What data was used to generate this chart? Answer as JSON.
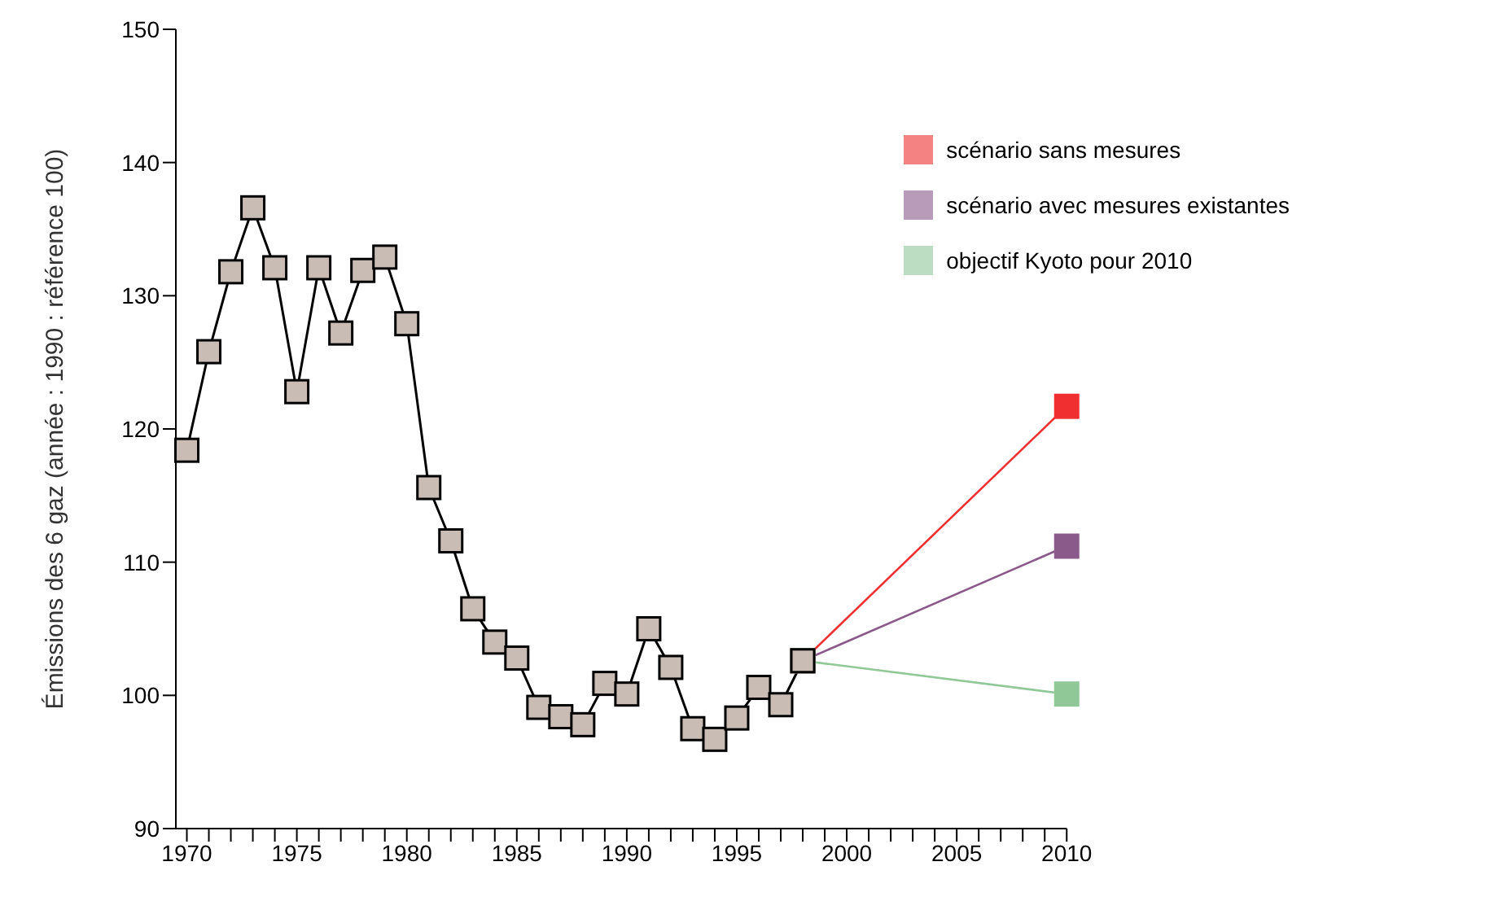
{
  "chart_data": {
    "type": "line",
    "ylabel": "Émissions des 6 gaz (année : 1990 : référence 100)",
    "xlim": [
      1969.5,
      2010
    ],
    "ylim": [
      90,
      150
    ],
    "yticks": [
      90,
      100,
      110,
      120,
      130,
      140,
      150
    ],
    "xticks": [
      1970,
      {
        "value": 1971,
        "label": null
      },
      {
        "value": 1972,
        "label": null
      },
      {
        "value": 1973,
        "label": null
      },
      {
        "value": 1974,
        "label": null
      },
      1975,
      {
        "value": 1976,
        "label": null
      },
      {
        "value": 1977,
        "label": null
      },
      {
        "value": 1978,
        "label": null
      },
      {
        "value": 1979,
        "label": null
      },
      1980,
      {
        "value": 1981,
        "label": null
      },
      {
        "value": 1982,
        "label": null
      },
      {
        "value": 1983,
        "label": null
      },
      {
        "value": 1984,
        "label": null
      },
      1985,
      {
        "value": 1986,
        "label": null
      },
      {
        "value": 1987,
        "label": null
      },
      {
        "value": 1988,
        "label": null
      },
      {
        "value": 1989,
        "label": null
      },
      1990,
      {
        "value": 1991,
        "label": null
      },
      {
        "value": 1992,
        "label": null
      },
      {
        "value": 1993,
        "label": null
      },
      {
        "value": 1994,
        "label": null
      },
      1995,
      {
        "value": 1996,
        "label": null
      },
      {
        "value": 1997,
        "label": null
      },
      {
        "value": 1998,
        "label": null
      },
      {
        "value": 1999,
        "label": null
      },
      2000,
      {
        "value": 2001,
        "label": null
      },
      {
        "value": 2002,
        "label": null
      },
      {
        "value": 2003,
        "label": null
      },
      {
        "value": 2004,
        "label": null
      },
      2005,
      {
        "value": 2006,
        "label": null
      },
      {
        "value": 2007,
        "label": null
      },
      {
        "value": 2008,
        "label": null
      },
      {
        "value": 2009,
        "label": null
      },
      2010
    ],
    "marker": "square",
    "line_style": "solid",
    "grid": false,
    "legend": "top right",
    "series": [
      {
        "name": "scénario sans mesures",
        "color": "#f03030",
        "x": [
          1998,
          2010
        ],
        "values": [
          102.6,
          121.7
        ]
      },
      {
        "name": "scénario avec mesures existantes",
        "color": "#8a5a8a",
        "x": [
          1998,
          2010
        ],
        "values": [
          102.6,
          111.2
        ]
      },
      {
        "name": "objectif Kyoto pour 2010",
        "color": "#90c898",
        "x": [
          1998,
          2010
        ],
        "values": [
          102.6,
          100.1
        ]
      },
      {
        "color": "#000000",
        "x": [
          1970,
          1971,
          1972,
          1973,
          1974,
          1975,
          1976,
          1977,
          1978,
          1979,
          1980,
          1981,
          1982,
          1983,
          1984,
          1985,
          1986,
          1987,
          1988,
          1989,
          1990,
          1991,
          1992,
          1993,
          1994,
          1995,
          1996,
          1997,
          1998
        ],
        "values": [
          118.4,
          125.8,
          131.8,
          136.6,
          132.1,
          122.8,
          132.1,
          127.2,
          131.9,
          132.9,
          127.9,
          115.6,
          111.6,
          106.5,
          104.0,
          102.8,
          99.1,
          98.4,
          97.8,
          100.9,
          100.1,
          105.0,
          102.1,
          97.5,
          96.7,
          98.3,
          100.6,
          99.3,
          102.6
        ]
      }
    ]
  }
}
